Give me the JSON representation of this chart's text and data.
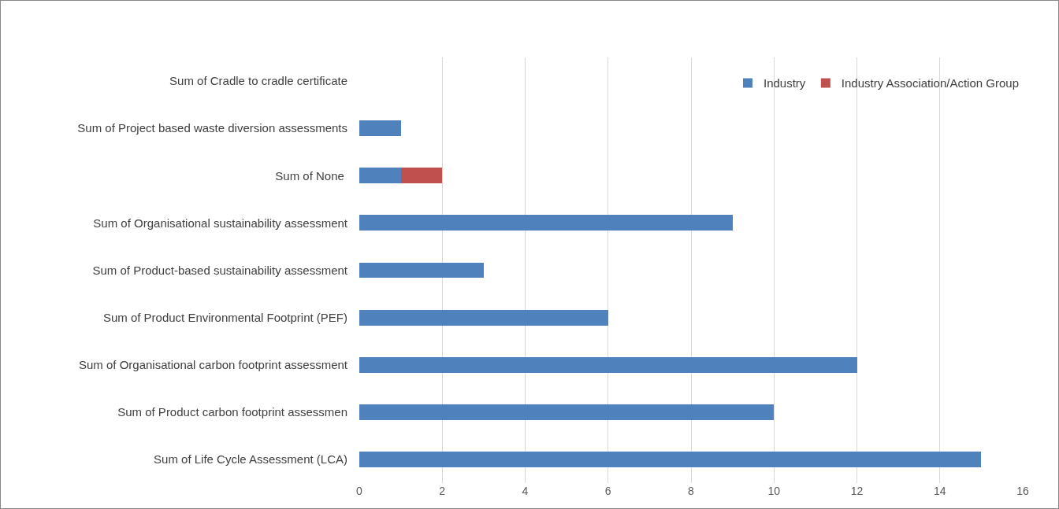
{
  "chart_data": {
    "type": "bar",
    "orientation": "horizontal",
    "stacked": true,
    "categories": [
      "Sum of Cradle to cradle certificate",
      "Sum of Project based waste diversion assessments",
      "Sum of None ",
      "Sum of Organisational sustainability assessment",
      "Sum of Product-based sustainability assessment",
      "Sum of Product Environmental Footprint (PEF)",
      "Sum of Organisational carbon footprint assessment",
      "Sum of Product carbon footprint assessmen",
      "Sum of Life Cycle Assessment (LCA)"
    ],
    "series": [
      {
        "name": "Industry",
        "color": "#4f81bd",
        "values": [
          null,
          1,
          1,
          9,
          3,
          6,
          12,
          10,
          15
        ]
      },
      {
        "name": "Industry Association/Action Group",
        "color": "#c0504d",
        "values": [
          null,
          null,
          1,
          null,
          null,
          null,
          null,
          null,
          null
        ]
      }
    ],
    "xlim": [
      0,
      16
    ],
    "xticks": [
      0,
      2,
      4,
      6,
      8,
      10,
      12,
      14,
      16
    ],
    "grid": "x",
    "legend": "top right"
  }
}
